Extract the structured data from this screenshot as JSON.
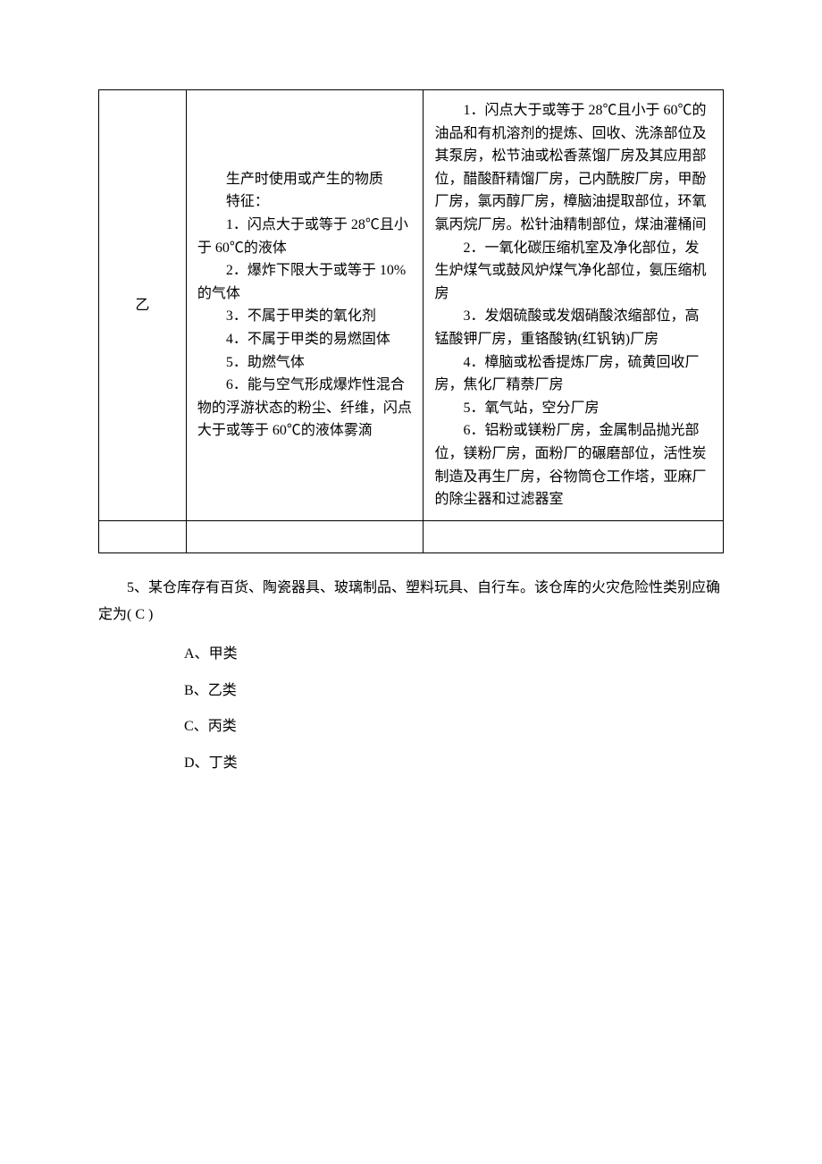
{
  "table": {
    "border_color": "#000000",
    "font_size": 16,
    "text_color": "#000000",
    "background_color": "#ffffff",
    "columns": [
      "category",
      "features",
      "examples"
    ],
    "column_widths": [
      "14%",
      "38%",
      "48%"
    ],
    "rows": [
      {
        "category": "乙",
        "features_intro": "生产时使用或产生的物质",
        "features_label": "特征：",
        "features_items": [
          "1．闪点大于或等于 28℃且小于 60℃的液体",
          "2．爆炸下限大于或等于 10%的气体",
          "3．不属于甲类的氧化剂",
          "4．不属于甲类的易燃固体",
          "5．助燃气体",
          "6．能与空气形成爆炸性混合物的浮游状态的粉尘、纤维，闪点大于或等于 60℃的液体雾滴"
        ],
        "examples_items": [
          "1．闪点大于或等于 28℃且小于 60℃的油品和有机溶剂的提炼、回收、洗涤部位及其泵房，松节油或松香蒸馏厂房及其应用部位，醋酸酐精馏厂房，己内酰胺厂房，甲酚厂房，氯丙醇厂房，樟脑油提取部位，环氧氯丙烷厂房。松针油精制部位，煤油灌桶间",
          "2．一氧化碳压缩机室及净化部位，发生炉煤气或鼓风炉煤气净化部位，氨压缩机房",
          "3．发烟硫酸或发烟硝酸浓缩部位，高锰酸钾厂房，重铬酸钠(红钒钠)厂房",
          "4．樟脑或松香提炼厂房，硫黄回收厂房，焦化厂精萘厂房",
          "5．氧气站，空分厂房",
          "6．铝粉或镁粉厂房，金属制品抛光部位，镁粉厂房，面粉厂的碾磨部位，活性炭制造及再生厂房，谷物筒仓工作塔，亚麻厂的除尘器和过滤器室"
        ]
      }
    ]
  },
  "question": {
    "number": "5、",
    "text": "某仓库存有百货、陶瓷器具、玻璃制品、塑料玩具、自行车。该仓库的火灾危险性类别应确定为( C )",
    "options": [
      {
        "letter": "A、",
        "text": "甲类"
      },
      {
        "letter": "B、",
        "text": "乙类"
      },
      {
        "letter": "C、",
        "text": "丙类"
      },
      {
        "letter": "D、",
        "text": "丁类"
      }
    ]
  },
  "watermark": {
    "text": "",
    "color": "#f0f0f0",
    "font_size": 56
  }
}
